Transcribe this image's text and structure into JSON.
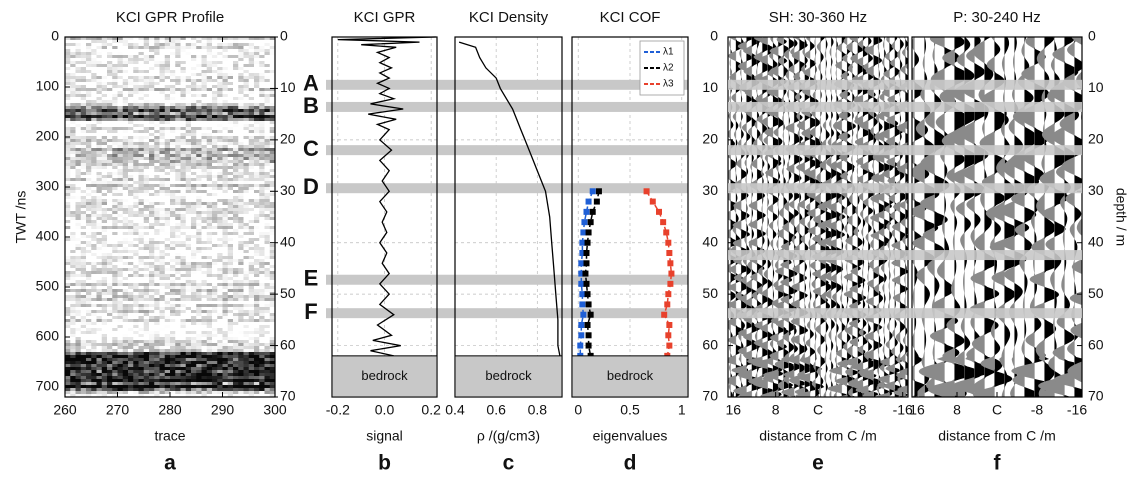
{
  "chart_data": [
    {
      "type": "image",
      "panel": "a",
      "title": "KCI GPR Profile",
      "xlabel": "trace",
      "ylabel": "TWT /ns",
      "xlim": [
        260,
        300
      ],
      "xticks": [
        260,
        270,
        280,
        290,
        300
      ],
      "ylim": [
        0,
        720
      ],
      "yticks": [
        0,
        100,
        200,
        300,
        400,
        500,
        600,
        700
      ],
      "y2lim": [
        0,
        70
      ],
      "y2ticks": [
        0,
        10,
        20,
        30,
        40,
        50,
        60,
        70
      ]
    },
    {
      "type": "line",
      "panel": "b",
      "title": "KCI GPR",
      "xlabel": "signal",
      "color": "#000000",
      "grid": true,
      "xlim": [
        -0.225,
        0.225
      ],
      "xticks": [
        {
          "value": -0.2,
          "label": "-0.2"
        },
        {
          "value": 0,
          "label": "0.0"
        },
        {
          "value": 0.2,
          "label": "0.2"
        }
      ],
      "ylim": [
        0,
        70
      ],
      "yticks": [
        10,
        20,
        30,
        40,
        50,
        60
      ],
      "depth": [
        0,
        0.5,
        1,
        1.5,
        2,
        3,
        4,
        5,
        6,
        7,
        8,
        9,
        10,
        11,
        12,
        13,
        14,
        15,
        16,
        17,
        18,
        20,
        22,
        24,
        26,
        28,
        30,
        32,
        34,
        36,
        38,
        40,
        42,
        44,
        46,
        48,
        50,
        52,
        54,
        56,
        58,
        59,
        60,
        61,
        62
      ],
      "values": [
        0.22,
        -0.2,
        0.15,
        -0.1,
        0.05,
        -0.03,
        0.02,
        -0.02,
        0.03,
        -0.02,
        0.02,
        -0.03,
        0.02,
        -0.02,
        0.04,
        -0.06,
        0.08,
        -0.07,
        0.05,
        -0.03,
        0.02,
        -0.02,
        0.03,
        -0.02,
        0.02,
        -0.01,
        0.02,
        -0.02,
        0.01,
        -0.01,
        0.01,
        -0.02,
        0.01,
        -0.01,
        0.02,
        -0.02,
        0.02,
        -0.02,
        0.04,
        -0.03,
        0.03,
        -0.05,
        0.07,
        -0.06,
        0.04
      ]
    },
    {
      "type": "line",
      "panel": "c",
      "title": "KCI Density",
      "xlabel": "ρ /(g/cm3)",
      "color": "#000000",
      "grid": true,
      "xlim": [
        0.4,
        0.92
      ],
      "xticks": [
        {
          "value": 0.4,
          "label": "0.4"
        },
        {
          "value": 0.6,
          "label": "0.6"
        },
        {
          "value": 0.8,
          "label": "0.8"
        }
      ],
      "ylim": [
        0,
        70
      ],
      "yticks": [
        10,
        20,
        30,
        40,
        50,
        60
      ],
      "depth": [
        1,
        2,
        4,
        6,
        8,
        10,
        12,
        14,
        16,
        18,
        20,
        22,
        24,
        26,
        28,
        30,
        35,
        40,
        45,
        50,
        55,
        60,
        62
      ],
      "values": [
        0.42,
        0.5,
        0.52,
        0.55,
        0.6,
        0.62,
        0.65,
        0.68,
        0.7,
        0.72,
        0.74,
        0.76,
        0.78,
        0.8,
        0.82,
        0.84,
        0.86,
        0.87,
        0.88,
        0.89,
        0.9,
        0.9,
        0.91
      ]
    },
    {
      "type": "profile_markers",
      "panel": "d",
      "title": "KCI COF",
      "xlabel": "eigenvalues",
      "grid": true,
      "line_style": "dashed",
      "legend": "upper right",
      "xlim": [
        -0.06,
        1.06
      ],
      "xticks": [
        0,
        0.5,
        1
      ],
      "ylim": [
        0,
        70
      ],
      "yticks": [
        10,
        20,
        30,
        40,
        50,
        60
      ],
      "depth": [
        30,
        32,
        34,
        36,
        38,
        40,
        42,
        44,
        46,
        48,
        50,
        52,
        54,
        56,
        58,
        60,
        62
      ],
      "series": [
        {
          "name": "λ1",
          "color": "#1f5fd6",
          "values": [
            0.14,
            0.1,
            0.08,
            0.06,
            0.05,
            0.04,
            0.04,
            0.03,
            0.03,
            0.03,
            0.04,
            0.04,
            0.05,
            0.03,
            0.03,
            0.02,
            0.02
          ]
        },
        {
          "name": "λ2",
          "color": "#000000",
          "values": [
            0.2,
            0.18,
            0.14,
            0.12,
            0.1,
            0.09,
            0.08,
            0.08,
            0.07,
            0.08,
            0.09,
            0.1,
            0.12,
            0.09,
            0.1,
            0.1,
            0.12
          ]
        },
        {
          "name": "λ3",
          "color": "#e8412c",
          "values": [
            0.66,
            0.72,
            0.78,
            0.82,
            0.85,
            0.87,
            0.88,
            0.89,
            0.9,
            0.89,
            0.87,
            0.86,
            0.83,
            0.88,
            0.87,
            0.88,
            0.86
          ]
        }
      ]
    },
    {
      "type": "wiggle",
      "panel": "e",
      "title": "SH: 30-360 Hz",
      "xlabel": "distance from C /m",
      "axis_side": "left",
      "xlim": [
        17,
        -17
      ],
      "xticks": [
        16,
        8,
        {
          "value": 0,
          "label": "C"
        },
        -8,
        -16
      ],
      "ylim": [
        0,
        70
      ],
      "yticks": [
        0,
        10,
        20,
        30,
        40,
        50,
        60,
        70
      ]
    },
    {
      "type": "wiggle",
      "panel": "f",
      "title": "P: 30-240 Hz",
      "xlabel": "distance from C /m",
      "axis_side": "right",
      "ylabel": "depth / m",
      "xlim": [
        17,
        -17
      ],
      "xticks": [
        16,
        8,
        {
          "value": 0,
          "label": "C"
        },
        -8,
        -16
      ],
      "ylim": [
        0,
        70
      ],
      "yticks": [
        0,
        10,
        20,
        30,
        40,
        50,
        60,
        70
      ]
    }
  ],
  "layers": {
    "labels": [
      "A",
      "B",
      "C",
      "D",
      "E",
      "F"
    ],
    "depths": [
      9.3,
      13.6,
      22,
      29.4,
      47.2,
      53.7
    ],
    "seismic_depths": [
      9.3,
      13.6,
      22,
      29.4,
      42.4,
      53.7
    ]
  },
  "bedrock": {
    "label": "bedrock",
    "top": 62
  }
}
